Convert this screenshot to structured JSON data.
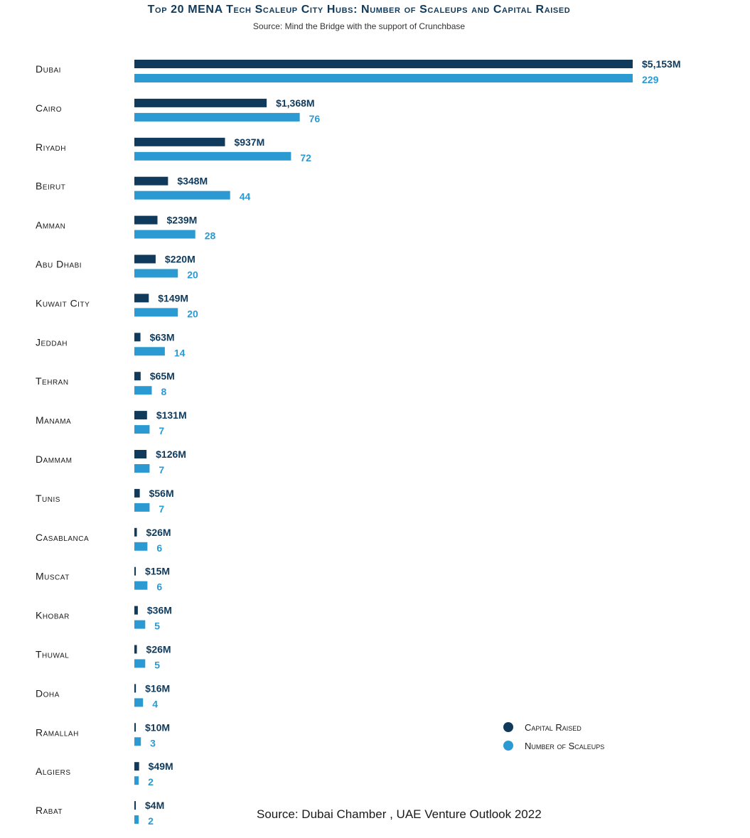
{
  "colors": {
    "capital": "#0f3a5c",
    "scaleups": "#2b9ad3"
  },
  "chart_data": {
    "type": "bar",
    "orientation": "horizontal",
    "title": "Top 20 MENA Tech Scaleup City Hubs: Number of Scaleups and Capital Raised",
    "subtitle": "Source: Mind the Bridge with the support of Crunchbase",
    "categories": [
      "Dubai",
      "Cairo",
      "Riyadh",
      "Beirut",
      "Amman",
      "Abu Dhabi",
      "Kuwait City",
      "Jeddah",
      "Tehran",
      "Manama",
      "Dammam",
      "Tunis",
      "Casablanca",
      "Muscat",
      "Khobar",
      "Thuwal",
      "Doha",
      "Ramallah",
      "Algiers",
      "Rabat"
    ],
    "series": [
      {
        "name": "Capital Raised",
        "unit": "$M",
        "values": [
          5153,
          1368,
          937,
          348,
          239,
          220,
          149,
          63,
          65,
          131,
          126,
          56,
          26,
          15,
          36,
          26,
          16,
          10,
          49,
          4
        ],
        "labels": [
          "$5,153M",
          "$1,368M",
          "$937M",
          "$348M",
          "$239M",
          "$220M",
          "$149M",
          "$63M",
          "$65M",
          "$131M",
          "$126M",
          "$56M",
          "$26M",
          "$15M",
          "$36M",
          "$26M",
          "$16M",
          "$10M",
          "$49M",
          "$4M"
        ]
      },
      {
        "name": "Number of Scaleups",
        "values": [
          229,
          76,
          72,
          44,
          28,
          20,
          20,
          14,
          8,
          7,
          7,
          7,
          6,
          6,
          5,
          5,
          4,
          3,
          2,
          2
        ],
        "labels": [
          "229",
          "76",
          "72",
          "44",
          "28",
          "20",
          "20",
          "14",
          "8",
          "7",
          "7",
          "7",
          "6",
          "6",
          "5",
          "5",
          "4",
          "3",
          "2",
          "2"
        ]
      }
    ],
    "legend": [
      "Capital Raised",
      "Number of Scaleups"
    ],
    "legend_position": "bottom-right",
    "grid": false
  },
  "footer": {
    "source": "Source: Dubai Chamber , UAE Venture Outlook 2022"
  }
}
